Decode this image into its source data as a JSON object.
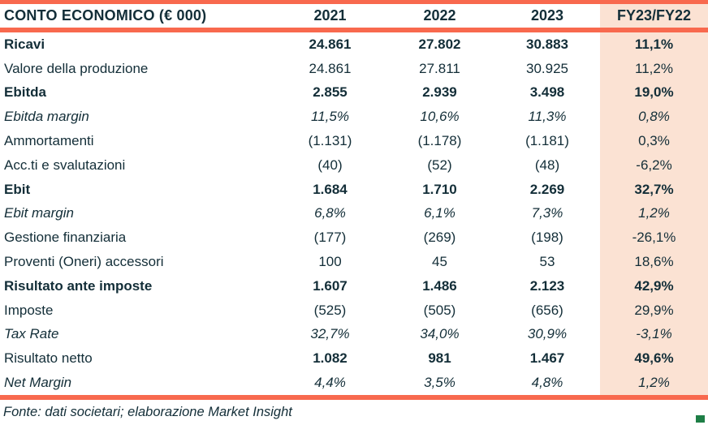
{
  "colors": {
    "accent_orange": "#F8694E",
    "highlight_peach": "#FBE2D3",
    "text_dark": "#132E38",
    "brand_green": "#1E7E46"
  },
  "table": {
    "header": {
      "title": "CONTO ECONOMICO (€ 000)",
      "years": [
        "2021",
        "2022",
        "2023"
      ],
      "delta": "FY23/FY22"
    },
    "rows": [
      {
        "label": "Ricavi",
        "style": "bold",
        "values": [
          "24.861",
          "27.802",
          "30.883",
          "11,1%"
        ]
      },
      {
        "label": "Valore della produzione",
        "style": "plain",
        "values": [
          "24.861",
          "27.811",
          "30.925",
          "11,2%"
        ]
      },
      {
        "label": "Ebitda",
        "style": "bold",
        "values": [
          "2.855",
          "2.939",
          "3.498",
          "19,0%"
        ]
      },
      {
        "label": "Ebitda margin",
        "style": "italic",
        "values": [
          "11,5%",
          "10,6%",
          "11,3%",
          "0,8%"
        ]
      },
      {
        "label": "Ammortamenti",
        "style": "plain",
        "values": [
          "(1.131)",
          "(1.178)",
          "(1.181)",
          "0,3%"
        ]
      },
      {
        "label": "Acc.ti e svalutazioni",
        "style": "plain",
        "values": [
          "(40)",
          "(52)",
          "(48)",
          "-6,2%"
        ]
      },
      {
        "label": "Ebit",
        "style": "bold",
        "values": [
          "1.684",
          "1.710",
          "2.269",
          "32,7%"
        ]
      },
      {
        "label": "Ebit margin",
        "style": "italic",
        "values": [
          "6,8%",
          "6,1%",
          "7,3%",
          "1,2%"
        ]
      },
      {
        "label": "Gestione finanziaria",
        "style": "plain",
        "values": [
          "(177)",
          "(269)",
          "(198)",
          "-26,1%"
        ]
      },
      {
        "label": "Proventi (Oneri) accessori",
        "style": "plain",
        "values": [
          "100",
          "45",
          "53",
          "18,6%"
        ]
      },
      {
        "label": "Risultato ante imposte",
        "style": "bold",
        "values": [
          "1.607",
          "1.486",
          "2.123",
          "42,9%"
        ]
      },
      {
        "label": "Imposte",
        "style": "plain",
        "values": [
          "(525)",
          "(505)",
          "(656)",
          "29,9%"
        ]
      },
      {
        "label": "Tax Rate",
        "style": "italic",
        "values": [
          "32,7%",
          "34,0%",
          "30,9%",
          "-3,1%"
        ]
      },
      {
        "label": "Risultato netto",
        "style": "valbold",
        "values": [
          "1.082",
          "981",
          "1.467",
          "49,6%"
        ]
      },
      {
        "label": "Net Margin",
        "style": "italic",
        "values": [
          "4,4%",
          "3,5%",
          "4,8%",
          "1,2%"
        ]
      }
    ]
  },
  "footer": {
    "source": "Fonte: dati societari; elaborazione Market Insight"
  }
}
